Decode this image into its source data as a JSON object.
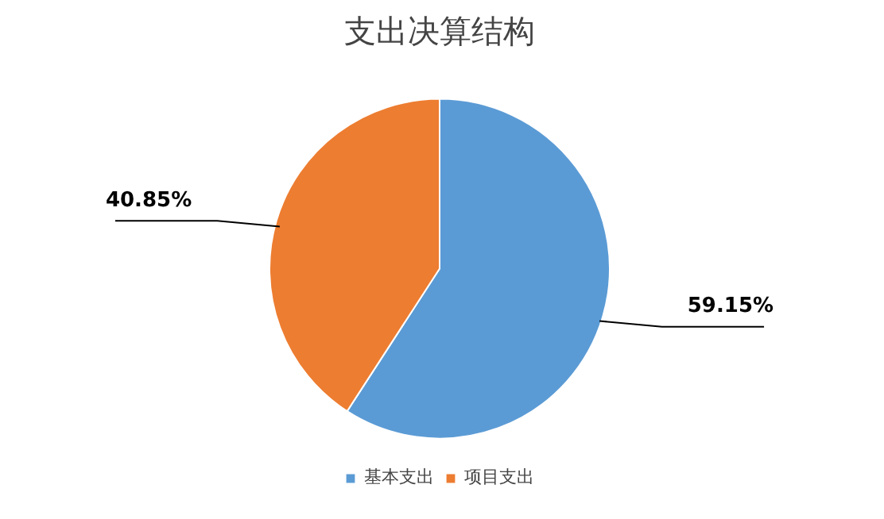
{
  "chart_data": {
    "type": "pie",
    "title": "支出决算结构",
    "categories": [
      "基本支出",
      "项目支出"
    ],
    "values": [
      59.15,
      40.85
    ],
    "colors": [
      "#5b9bd5",
      "#ed7d31"
    ],
    "value_labels": [
      "59.15%",
      "40.85%"
    ],
    "legend": "bottom"
  }
}
